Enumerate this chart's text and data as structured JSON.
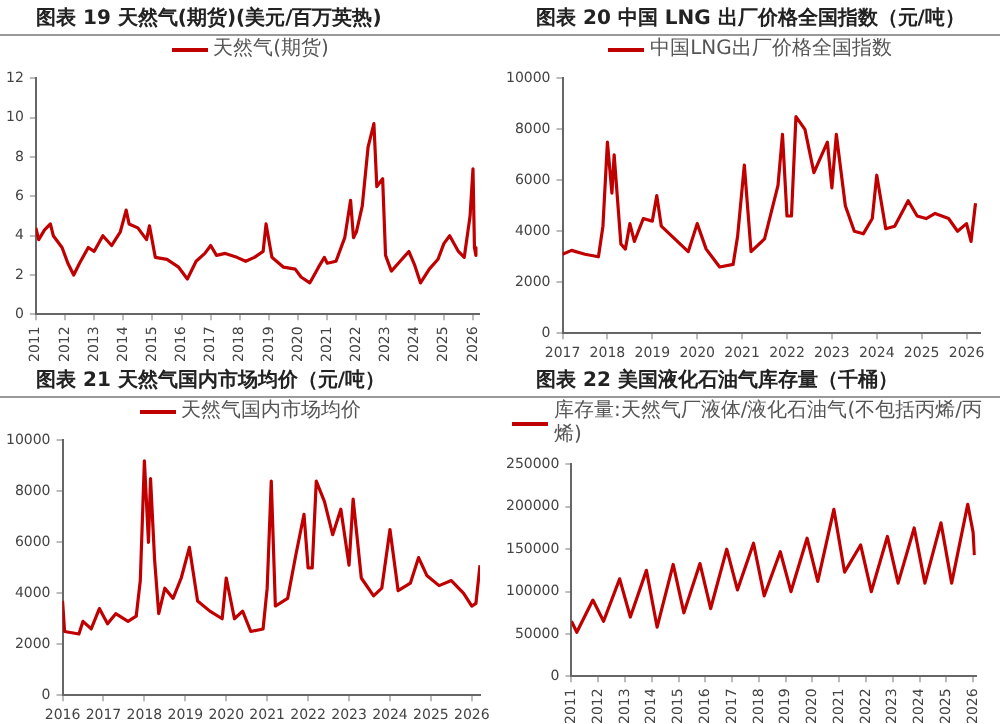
{
  "chart_data": [
    {
      "type": "line",
      "title": "图表 19 天然气(期货)(美元/百万英热)",
      "legend": "top",
      "xlim": [
        2011,
        2026.2
      ],
      "xticks": [
        2011,
        2012,
        2013,
        2014,
        2015,
        2016,
        2017,
        2018,
        2019,
        2020,
        2021,
        2022,
        2023,
        2024,
        2025,
        2026
      ],
      "ylim": [
        0,
        12
      ],
      "yticks": [
        0,
        2,
        4,
        6,
        8,
        10,
        12
      ],
      "series": [
        {
          "name": "天然气(期货)",
          "color": "#c00000",
          "x": [
            2011.0,
            2011.1,
            2011.3,
            2011.5,
            2011.6,
            2011.9,
            2012.1,
            2012.3,
            2012.5,
            2012.8,
            2013.0,
            2013.3,
            2013.6,
            2013.9,
            2014.1,
            2014.2,
            2014.5,
            2014.8,
            2014.9,
            2015.1,
            2015.5,
            2015.9,
            2016.2,
            2016.5,
            2016.8,
            2017.0,
            2017.2,
            2017.5,
            2017.9,
            2018.2,
            2018.5,
            2018.8,
            2018.9,
            2019.1,
            2019.5,
            2019.9,
            2020.1,
            2020.4,
            2020.7,
            2020.9,
            2021.0,
            2021.3,
            2021.6,
            2021.8,
            2021.9,
            2022.0,
            2022.2,
            2022.4,
            2022.6,
            2022.7,
            2022.9,
            2023.0,
            2023.2,
            2023.5,
            2023.8,
            2024.0,
            2024.2,
            2024.5,
            2024.8,
            2025.0,
            2025.2,
            2025.5,
            2025.7,
            2025.9,
            2026.0,
            2026.05,
            2026.1
          ],
          "values": [
            4.4,
            3.8,
            4.3,
            4.6,
            4.0,
            3.4,
            2.6,
            2.0,
            2.6,
            3.4,
            3.2,
            4.0,
            3.5,
            4.2,
            5.3,
            4.6,
            4.4,
            3.8,
            4.5,
            2.9,
            2.8,
            2.4,
            1.8,
            2.7,
            3.1,
            3.5,
            3.0,
            3.1,
            2.9,
            2.7,
            2.9,
            3.2,
            4.6,
            2.9,
            2.4,
            2.3,
            1.9,
            1.6,
            2.4,
            2.9,
            2.6,
            2.7,
            3.9,
            5.8,
            3.9,
            4.2,
            5.5,
            8.5,
            9.7,
            6.5,
            6.9,
            3.0,
            2.2,
            2.7,
            3.2,
            2.5,
            1.6,
            2.3,
            2.8,
            3.6,
            4.0,
            3.2,
            2.9,
            5.0,
            7.4,
            3.4,
            3.0
          ]
        }
      ]
    },
    {
      "type": "line",
      "title": "图表 20 中国 LNG 出厂价格全国指数（元/吨）",
      "legend": "top",
      "xlim": [
        2017,
        2026.3
      ],
      "xticks": [
        2017,
        2018,
        2019,
        2020,
        2021,
        2022,
        2023,
        2024,
        2025,
        2026
      ],
      "ylim": [
        0,
        10000
      ],
      "yticks": [
        0,
        2000,
        4000,
        6000,
        8000,
        10000
      ],
      "series": [
        {
          "name": "中国LNG出厂价格全国指数",
          "color": "#c00000",
          "x": [
            2017.0,
            2017.2,
            2017.5,
            2017.8,
            2017.9,
            2018.0,
            2018.1,
            2018.15,
            2018.3,
            2018.4,
            2018.5,
            2018.6,
            2018.8,
            2019.0,
            2019.1,
            2019.2,
            2019.5,
            2019.8,
            2020.0,
            2020.2,
            2020.5,
            2020.8,
            2020.9,
            2021.05,
            2021.2,
            2021.5,
            2021.8,
            2021.9,
            2022.0,
            2022.1,
            2022.2,
            2022.4,
            2022.6,
            2022.9,
            2023.0,
            2023.1,
            2023.3,
            2023.5,
            2023.7,
            2023.9,
            2024.0,
            2024.2,
            2024.4,
            2024.7,
            2024.9,
            2025.1,
            2025.3,
            2025.6,
            2025.8,
            2026.0,
            2026.1,
            2026.2
          ],
          "values": [
            3100,
            3250,
            3100,
            3000,
            4200,
            7500,
            5500,
            7000,
            3500,
            3300,
            4300,
            3600,
            4500,
            4400,
            5400,
            4200,
            3700,
            3200,
            4300,
            3300,
            2600,
            2700,
            3800,
            6600,
            3200,
            3700,
            5800,
            7800,
            4600,
            4600,
            8500,
            8000,
            6300,
            7500,
            5700,
            7800,
            5000,
            4000,
            3900,
            4500,
            6200,
            4100,
            4200,
            5200,
            4600,
            4500,
            4700,
            4500,
            4000,
            4300,
            3600,
            5100
          ]
        }
      ]
    },
    {
      "type": "line",
      "title": "图表 21 天然气国内市场均价（元/吨）",
      "legend": "top",
      "xlim": [
        2016,
        2026.2
      ],
      "xticks": [
        2016,
        2017,
        2018,
        2019,
        2020,
        2021,
        2022,
        2023,
        2024,
        2025,
        2026
      ],
      "ylim": [
        0,
        10000
      ],
      "yticks": [
        0,
        2000,
        4000,
        6000,
        8000,
        10000
      ],
      "series": [
        {
          "name": "天然气国内市场均价",
          "color": "#c00000",
          "x": [
            2016.0,
            2016.05,
            2016.4,
            2016.5,
            2016.7,
            2016.9,
            2017.1,
            2017.3,
            2017.6,
            2017.8,
            2017.9,
            2018.0,
            2018.1,
            2018.15,
            2018.25,
            2018.35,
            2018.5,
            2018.7,
            2018.9,
            2019.1,
            2019.3,
            2019.6,
            2019.9,
            2020.0,
            2020.2,
            2020.4,
            2020.6,
            2020.9,
            2021.0,
            2021.1,
            2021.2,
            2021.5,
            2021.7,
            2021.9,
            2022.0,
            2022.1,
            2022.2,
            2022.4,
            2022.6,
            2022.8,
            2023.0,
            2023.1,
            2023.3,
            2023.6,
            2023.8,
            2024.0,
            2024.2,
            2024.5,
            2024.7,
            2024.9,
            2025.2,
            2025.5,
            2025.8,
            2026.0,
            2026.1,
            2026.2
          ],
          "values": [
            3700,
            2500,
            2400,
            2900,
            2600,
            3400,
            2800,
            3200,
            2900,
            3100,
            4500,
            9200,
            6000,
            8500,
            5300,
            3200,
            4200,
            3800,
            4600,
            5800,
            3700,
            3300,
            3000,
            4600,
            3000,
            3300,
            2500,
            2600,
            4200,
            8400,
            3500,
            3800,
            5500,
            7100,
            5000,
            5000,
            8400,
            7600,
            6300,
            7300,
            5100,
            7700,
            4600,
            3900,
            4200,
            6500,
            4100,
            4400,
            5400,
            4700,
            4300,
            4500,
            4000,
            3500,
            3600,
            5100
          ]
        }
      ]
    },
    {
      "type": "line",
      "title": "图表 22 美国液化石油气库存量（千桶）",
      "legend": "top",
      "xlim": [
        2011,
        2026.1
      ],
      "xticks": [
        2011,
        2012,
        2013,
        2014,
        2015,
        2016,
        2017,
        2018,
        2019,
        2020,
        2021,
        2022,
        2023,
        2024,
        2025,
        2026
      ],
      "ylim": [
        0,
        250000
      ],
      "yticks": [
        0,
        50000,
        100000,
        150000,
        200000,
        250000
      ],
      "series": [
        {
          "name": "库存量:天然气厂液体/液化石油气(不包括丙烯/丙烯)",
          "color": "#c00000",
          "x": [
            2011.0,
            2011.2,
            2011.8,
            2012.2,
            2012.8,
            2013.2,
            2013.8,
            2014.2,
            2014.8,
            2015.2,
            2015.8,
            2016.2,
            2016.8,
            2017.2,
            2017.8,
            2018.2,
            2018.8,
            2019.2,
            2019.8,
            2020.2,
            2020.8,
            2021.2,
            2021.8,
            2022.2,
            2022.8,
            2023.2,
            2023.8,
            2024.2,
            2024.8,
            2025.2,
            2025.8,
            2026.0,
            2026.05
          ],
          "values": [
            65000,
            52000,
            90000,
            65000,
            115000,
            70000,
            125000,
            58000,
            132000,
            75000,
            133000,
            80000,
            150000,
            102000,
            157000,
            95000,
            147000,
            100000,
            163000,
            112000,
            197000,
            123000,
            155000,
            100000,
            165000,
            110000,
            175000,
            110000,
            181000,
            110000,
            203000,
            170000,
            143000
          ]
        }
      ]
    }
  ]
}
